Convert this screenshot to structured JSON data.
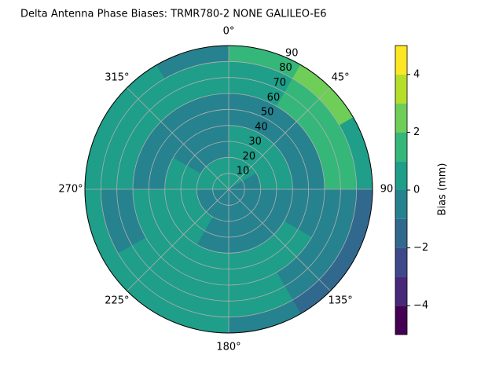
{
  "chart_data": {
    "type": "polar-contour",
    "title": "Delta Antenna Phase Biases: TRMR780-2       NONE GALILEO-E6",
    "azimuth_bins": [
      0,
      30,
      60,
      90,
      120,
      150,
      180,
      210,
      240,
      270,
      300,
      330,
      360
    ],
    "zenith_bins": [
      0,
      20,
      40,
      60,
      80,
      90
    ],
    "z": [
      [
        0.5,
        0.3,
        -0.3,
        -0.5,
        -0.5,
        -0.5,
        -0.5,
        -0.5,
        -0.3,
        0.4,
        0.5,
        0.5
      ],
      [
        0.5,
        0.5,
        0.3,
        -0.3,
        -0.5,
        -0.5,
        -0.5,
        0.3,
        0.5,
        0.4,
        -0.3,
        -0.3
      ],
      [
        -0.4,
        -0.3,
        -0.3,
        -0.5,
        0.3,
        0.4,
        0.3,
        0.5,
        0.5,
        -0.3,
        -0.4,
        -0.3
      ],
      [
        0.5,
        1.5,
        1.5,
        -0.5,
        -0.5,
        0.3,
        0.5,
        0.4,
        -0.3,
        0.3,
        0.5,
        0.5
      ],
      [
        1.5,
        2.5,
        0.5,
        -1.5,
        -1.2,
        -0.5,
        0.5,
        0.5,
        0.5,
        0.4,
        0.3,
        -0.3
      ]
    ],
    "levels": [
      -5,
      -4,
      -3,
      -2,
      -1,
      0,
      1,
      2,
      3,
      4,
      5
    ],
    "colors": [
      "#440154",
      "#482878",
      "#3e4989",
      "#31688e",
      "#26828e",
      "#1f9e89",
      "#35b779",
      "#6ece58",
      "#b5de2b",
      "#fde725"
    ],
    "ylim": [
      0,
      90
    ],
    "yticks": [
      10,
      20,
      30,
      40,
      50,
      60,
      70,
      80,
      90
    ],
    "xticks": [
      {
        "value": 0,
        "label": "0°"
      },
      {
        "value": 45,
        "label": "45°"
      },
      {
        "value": 90,
        "label": "90"
      },
      {
        "value": 135,
        "label": "135°"
      },
      {
        "value": 180,
        "label": "180°"
      },
      {
        "value": 225,
        "label": "225°"
      },
      {
        "value": 270,
        "label": "270°"
      },
      {
        "value": 315,
        "label": "315°"
      }
    ],
    "colorbar_label": "Bias (mm)",
    "colorbar_ticks": [
      {
        "value": -4,
        "label": "−4"
      },
      {
        "value": -2,
        "label": "−2"
      },
      0,
      2,
      {
        "value": 4,
        "label": "4"
      }
    ],
    "grid": true
  }
}
